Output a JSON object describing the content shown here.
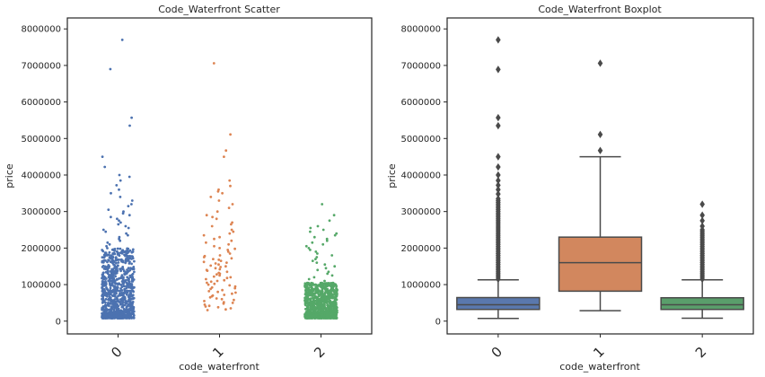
{
  "colors": {
    "blue": "#4c72b0",
    "orange": "#dd8452",
    "green": "#55a868",
    "box_blue": "#5a78ad",
    "box_orange": "#d2875e",
    "box_green": "#5a9e6b",
    "line": "#4a4a4a",
    "axis": "#262626"
  },
  "chart_data": [
    {
      "type": "scatter",
      "title": "Code_Waterfront Scatter",
      "xlabel": "code_waterfront",
      "ylabel": "price",
      "categories": [
        "0",
        "1",
        "2"
      ],
      "ylim": [
        -350000,
        8300000
      ],
      "yticks": [
        0,
        1000000,
        2000000,
        3000000,
        4000000,
        5000000,
        6000000,
        7000000,
        8000000
      ],
      "ytick_labels": [
        "0",
        "1000000",
        "2000000",
        "3000000",
        "4000000",
        "5000000",
        "6000000",
        "7000000",
        "8000000"
      ],
      "grid": false,
      "series": [
        {
          "category": "0",
          "color": "blue",
          "dense_range": [
            80000,
            2000000
          ],
          "sparse_points": [
            7700000,
            6900000,
            5570000,
            5350000,
            4500000,
            4220000,
            4000000,
            3950000,
            3850000,
            3720000,
            3600000,
            3500000,
            3400000,
            3300000,
            3200000,
            3150000,
            3050000,
            3000000,
            2950000,
            2900000,
            2850000,
            2800000,
            2750000,
            2700000,
            2650000,
            2600000,
            2550000,
            2500000,
            2450000,
            2400000,
            2350000,
            2300000,
            2250000,
            2200000,
            2150000,
            2100000,
            2050000
          ]
        },
        {
          "category": "1",
          "color": "orange",
          "points": [
            7060000,
            5110000,
            4670000,
            4500000,
            3850000,
            3700000,
            3600000,
            3550000,
            3500000,
            3400000,
            3300000,
            3200000,
            3100000,
            3000000,
            2900000,
            2850000,
            2800000,
            2700000,
            2650000,
            2600000,
            2500000,
            2450000,
            2400000,
            2350000,
            2300000,
            2250000,
            2200000,
            2150000,
            2100000,
            2050000,
            2000000,
            1980000,
            1950000,
            1900000,
            1850000,
            1800000,
            1780000,
            1750000,
            1720000,
            1700000,
            1680000,
            1650000,
            1620000,
            1600000,
            1580000,
            1550000,
            1520000,
            1500000,
            1480000,
            1450000,
            1420000,
            1400000,
            1380000,
            1350000,
            1320000,
            1300000,
            1280000,
            1250000,
            1220000,
            1200000,
            1180000,
            1150000,
            1120000,
            1100000,
            1080000,
            1050000,
            1020000,
            1000000,
            980000,
            950000,
            920000,
            900000,
            880000,
            850000,
            820000,
            800000,
            780000,
            750000,
            720000,
            700000,
            680000,
            650000,
            620000,
            600000,
            580000,
            550000,
            520000,
            500000,
            480000,
            450000,
            420000,
            400000,
            380000,
            350000,
            320000,
            300000
          ]
        },
        {
          "category": "2",
          "color": "green",
          "dense_range": [
            80000,
            1050000
          ],
          "sparse_points": [
            3200000,
            2900000,
            2750000,
            2600000,
            2550000,
            2500000,
            2450000,
            2400000,
            2350000,
            2300000,
            2250000,
            2200000,
            2150000,
            2100000,
            2050000,
            2000000,
            1950000,
            1900000,
            1850000,
            1800000,
            1750000,
            1700000,
            1650000,
            1600000,
            1550000,
            1500000,
            1450000,
            1400000,
            1350000,
            1300000,
            1250000,
            1200000,
            1150000,
            1100000
          ]
        }
      ]
    },
    {
      "type": "box",
      "title": "Code_Waterfront Boxplot",
      "xlabel": "code_waterfront",
      "ylabel": "price",
      "categories": [
        "0",
        "1",
        "2"
      ],
      "ylim": [
        -350000,
        8300000
      ],
      "yticks": [
        0,
        1000000,
        2000000,
        3000000,
        4000000,
        5000000,
        6000000,
        7000000,
        8000000
      ],
      "ytick_labels": [
        "0",
        "1000000",
        "2000000",
        "3000000",
        "4000000",
        "5000000",
        "6000000",
        "7000000",
        "8000000"
      ],
      "grid": false,
      "boxes": [
        {
          "category": "0",
          "color": "box_blue",
          "whisker_low": 75000,
          "q1": 320000,
          "median": 450000,
          "q3": 645000,
          "whisker_high": 1130000,
          "outliers": [
            7700000,
            6890000,
            5570000,
            5350000,
            4500000,
            4220000,
            4000000,
            3850000,
            3720000,
            3600000,
            3480000,
            3350000,
            3300000,
            3250000,
            3200000,
            3150000,
            3100000,
            3050000,
            3000000,
            2950000,
            2900000,
            2850000,
            2800000,
            2750000,
            2700000,
            2650000,
            2600000,
            2550000,
            2500000,
            2450000,
            2400000,
            2350000,
            2300000,
            2250000,
            2200000,
            2150000,
            2100000,
            2050000,
            2000000,
            1950000,
            1900000,
            1850000,
            1800000,
            1750000,
            1700000,
            1650000,
            1600000,
            1550000,
            1500000,
            1450000,
            1400000,
            1350000,
            1300000,
            1250000,
            1200000,
            1150000
          ]
        },
        {
          "category": "1",
          "color": "box_orange",
          "whisker_low": 285000,
          "q1": 820000,
          "median": 1600000,
          "q3": 2300000,
          "whisker_high": 4500000,
          "outliers": [
            7060000,
            5110000,
            4670000
          ]
        },
        {
          "category": "2",
          "color": "box_green",
          "whisker_low": 80000,
          "q1": 320000,
          "median": 450000,
          "q3": 640000,
          "whisker_high": 1130000,
          "outliers": [
            3200000,
            2900000,
            2750000,
            2600000,
            2500000,
            2450000,
            2400000,
            2350000,
            2300000,
            2250000,
            2200000,
            2150000,
            2100000,
            2050000,
            2000000,
            1950000,
            1900000,
            1850000,
            1800000,
            1750000,
            1700000,
            1650000,
            1600000,
            1550000,
            1500000,
            1450000,
            1400000,
            1350000,
            1300000,
            1250000,
            1200000,
            1150000
          ]
        }
      ]
    }
  ]
}
